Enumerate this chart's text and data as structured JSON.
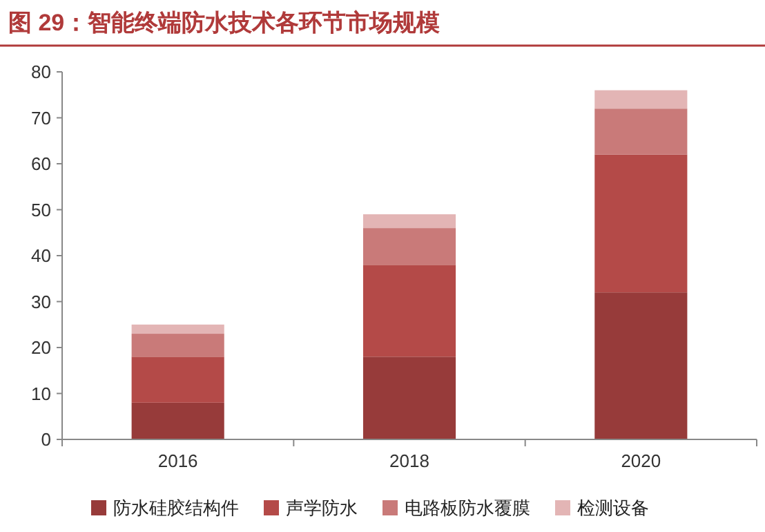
{
  "chart_data": {
    "type": "bar",
    "title": "图 29：智能终端防水技术各环节市场规模",
    "stacked": true,
    "categories": [
      "2016",
      "2018",
      "2020"
    ],
    "series": [
      {
        "name": "防水硅胶结构件",
        "color": "#973b3a",
        "values": [
          8,
          18,
          32
        ]
      },
      {
        "name": "声学防水",
        "color": "#b44a48",
        "values": [
          10,
          20,
          30
        ]
      },
      {
        "name": "电路板防水覆膜",
        "color": "#c97a79",
        "values": [
          5,
          8,
          10
        ]
      },
      {
        "name": "检测设备",
        "color": "#e3b5b5",
        "values": [
          2,
          3,
          4
        ]
      }
    ],
    "ylim": [
      0,
      80
    ],
    "yticks": [
      0,
      10,
      20,
      30,
      40,
      50,
      60,
      70,
      80
    ],
    "grid": false,
    "legend": "bottom"
  }
}
